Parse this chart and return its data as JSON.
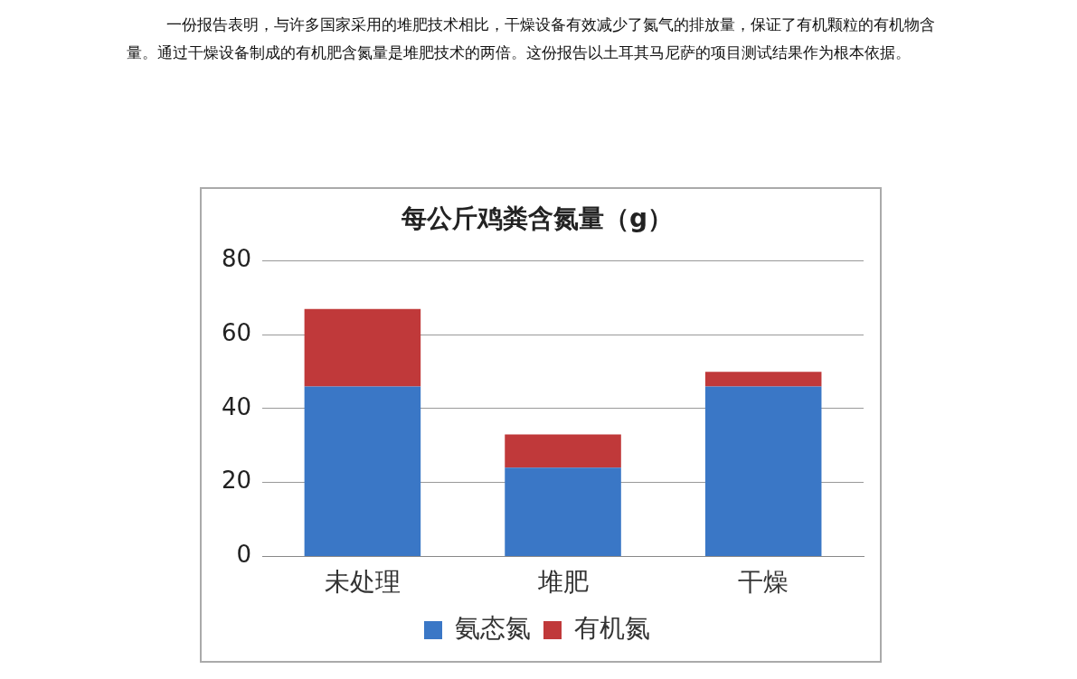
{
  "chart_data": {
    "type": "bar",
    "title": "每公斤鸡粪含氮量（g）",
    "annotations": [
      "一份报告表明，与许多国家采用的堆肥技术相比，干燥设备有效减少了氮气的排放量，保证了有机颗粒的有机物含量。通过干燥设备制成的有机肥含氮量是堆肥技术的两倍。这份报告以土耳其马尼萨的项目测试结果作为根本依据。"
    ],
    "categories": [
      "未处理",
      "堆肥",
      "干燥"
    ],
    "series": [
      {
        "name": "氨态氮",
        "color": "#3a77c6",
        "values": [
          46,
          24,
          46
        ]
      },
      {
        "name": "有机氮",
        "color": "#c0393a",
        "values": [
          21,
          9,
          4
        ]
      }
    ],
    "stacked": true,
    "ylim": [
      0,
      80
    ],
    "yticks": [
      0,
      20,
      40,
      60,
      80
    ],
    "grid": "y",
    "legend": "bottom"
  }
}
